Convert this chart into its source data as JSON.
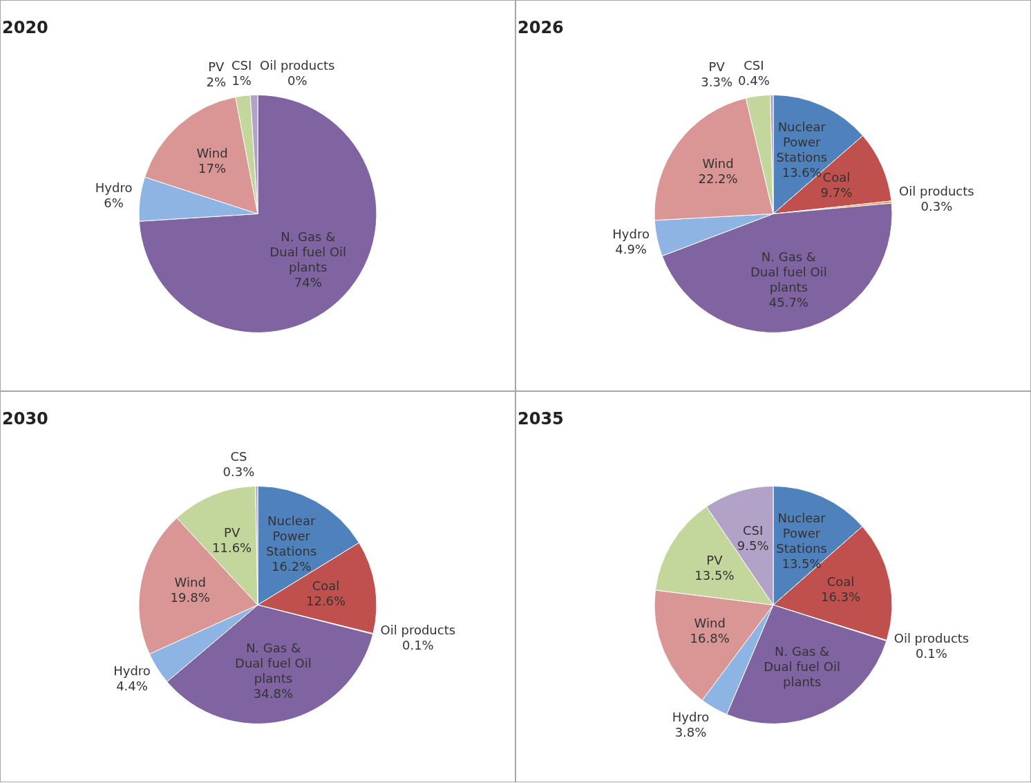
{
  "chart_data": [
    {
      "type": "pie",
      "title": "2020",
      "categories": [
        "Oil products",
        "N. Gas & Dual fuel Oil plants",
        "Hydro",
        "Wind",
        "PV",
        "CSI"
      ],
      "values": [
        0,
        74,
        6,
        17,
        2,
        1
      ],
      "value_labels": [
        "0%",
        "74%",
        "6%",
        "17%",
        "2%",
        "1%"
      ],
      "colors": [
        "#f79646",
        "#8064a2",
        "#8eb4e3",
        "#d99694",
        "#c3d69b",
        "#b3a2c7"
      ]
    },
    {
      "type": "pie",
      "title": "2026",
      "categories": [
        "Nuclear Power Stations",
        "Coal",
        "Oil products",
        "N. Gas & Dual fuel Oil plants",
        "Hydro",
        "Wind",
        "PV",
        "CSI"
      ],
      "values": [
        13.6,
        9.7,
        0.3,
        45.7,
        4.9,
        22.2,
        3.3,
        0.4
      ],
      "value_labels": [
        "13.6%",
        "9.7%",
        "0.3%",
        "45.7%",
        "4.9%",
        "22.2%",
        "3.3%",
        "0.4%"
      ],
      "colors": [
        "#4f81bd",
        "#c0504d",
        "#f79646",
        "#8064a2",
        "#8eb4e3",
        "#d99694",
        "#c3d69b",
        "#b3a2c7"
      ]
    },
    {
      "type": "pie",
      "title": "2030",
      "categories": [
        "Nuclear Power Stations",
        "Coal",
        "Oil products",
        "N. Gas & Dual fuel Oil plants",
        "Hydro",
        "Wind",
        "PV",
        "CS"
      ],
      "values": [
        16.2,
        12.6,
        0.1,
        34.8,
        4.4,
        19.8,
        11.6,
        0.3
      ],
      "value_labels": [
        "16.2%",
        "12.6%",
        "0.1%",
        "34.8%",
        "4.4%",
        "19.8%",
        "11.6%",
        "0.3%"
      ],
      "colors": [
        "#4f81bd",
        "#c0504d",
        "#f79646",
        "#8064a2",
        "#8eb4e3",
        "#d99694",
        "#c3d69b",
        "#b3a2c7"
      ]
    },
    {
      "type": "pie",
      "title": "2035",
      "categories": [
        "Nuclear Power Stations",
        "Coal",
        "Oil products",
        "N. Gas & Dual fuel Oil plants",
        "Hydro",
        "Wind",
        "PV",
        "CSI"
      ],
      "values": [
        13.5,
        16.3,
        0.1,
        26.5,
        3.8,
        16.8,
        13.5,
        9.5
      ],
      "value_labels": [
        "13.5%",
        "16.3%",
        "0.1%",
        null,
        "3.8%",
        "16.8%",
        "13.5%",
        "9.5%"
      ],
      "colors": [
        "#4f81bd",
        "#c0504d",
        "#f79646",
        "#8064a2",
        "#8eb4e3",
        "#d99694",
        "#c3d69b",
        "#b3a2c7"
      ]
    }
  ]
}
